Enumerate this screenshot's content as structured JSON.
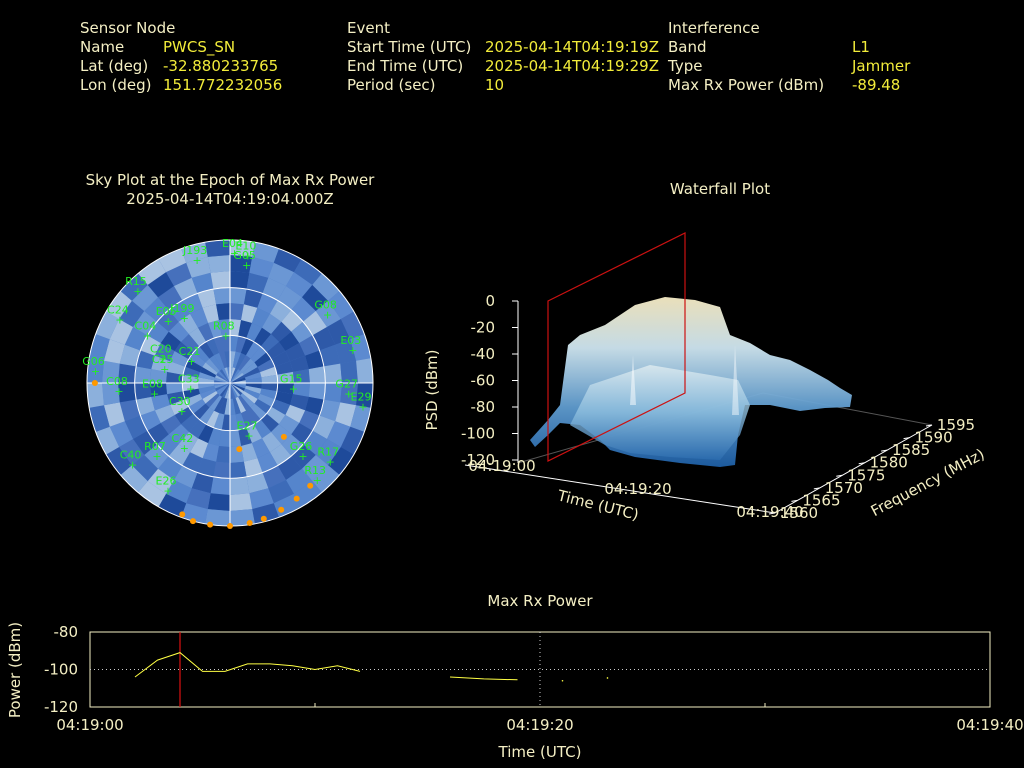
{
  "header": {
    "sensor": {
      "heading": "Sensor Node",
      "rows": [
        {
          "label": "Name",
          "value": "PWCS_SN"
        },
        {
          "label": "Lat (deg)",
          "value": "-32.880233765"
        },
        {
          "label": "Lon (deg)",
          "value": "151.772232056"
        }
      ]
    },
    "event": {
      "heading": "Event",
      "rows": [
        {
          "label": "Start Time (UTC)",
          "value": "2025-04-14T04:19:19Z"
        },
        {
          "label": "End Time (UTC)",
          "value": "2025-04-14T04:19:29Z"
        },
        {
          "label": "Period (sec)",
          "value": "10"
        }
      ]
    },
    "interference": {
      "heading": "Interference",
      "rows": [
        {
          "label": "Band",
          "value": "L1"
        },
        {
          "label": "Type",
          "value": "Jammer"
        },
        {
          "label": "Max Rx Power (dBm)",
          "value": "-89.48"
        }
      ]
    }
  },
  "skyplot": {
    "title_line1": "Sky Plot at the Epoch of Max Rx Power",
    "title_line2": "2025-04-14T04:19:04.000Z",
    "satellite_color": "#22ee22",
    "marker_color": "#ff9900",
    "satellites": [
      {
        "name": "J193",
        "az": 345,
        "el": 10
      },
      {
        "name": "E04",
        "az": 2,
        "el": 8
      },
      {
        "name": "E10",
        "az": 8,
        "el": 9
      },
      {
        "name": "G05",
        "az": 8,
        "el": 15
      },
      {
        "name": "R15",
        "az": 315,
        "el": 8
      },
      {
        "name": "C24",
        "az": 300,
        "el": 10
      },
      {
        "name": "E05",
        "az": 315,
        "el": 35
      },
      {
        "name": "G08",
        "az": 55,
        "el": 15
      },
      {
        "name": "E03",
        "az": 75,
        "el": 10
      },
      {
        "name": "C04",
        "az": 300,
        "el": 30
      },
      {
        "name": "J199",
        "az": 325,
        "el": 40
      },
      {
        "name": "C20",
        "az": 290,
        "el": 45
      },
      {
        "name": "C25",
        "az": 282,
        "el": 48
      },
      {
        "name": "R08",
        "az": 355,
        "el": 60
      },
      {
        "name": "G06",
        "az": 275,
        "el": 5
      },
      {
        "name": "C08",
        "az": 266,
        "el": 20
      },
      {
        "name": "E08",
        "az": 262,
        "el": 42
      },
      {
        "name": "C33",
        "az": 262,
        "el": 65
      },
      {
        "name": "C21",
        "az": 300,
        "el": 62
      },
      {
        "name": "G27",
        "az": 95,
        "el": 15
      },
      {
        "name": "E29",
        "az": 100,
        "el": 5
      },
      {
        "name": "G15",
        "az": 95,
        "el": 50
      },
      {
        "name": "E27",
        "az": 160,
        "el": 55
      },
      {
        "name": "G26",
        "az": 135,
        "el": 25
      },
      {
        "name": "R17",
        "az": 128,
        "el": 10
      },
      {
        "name": "R13",
        "az": 138,
        "el": 8
      },
      {
        "name": "C30",
        "az": 240,
        "el": 55
      },
      {
        "name": "C42",
        "az": 215,
        "el": 40
      },
      {
        "name": "R07",
        "az": 225,
        "el": 25
      },
      {
        "name": "C40",
        "az": 230,
        "el": 10
      },
      {
        "name": "E26",
        "az": 210,
        "el": 12
      }
    ],
    "orange_markers": [
      {
        "az": 200,
        "el": 2
      },
      {
        "az": 195,
        "el": 0
      },
      {
        "az": 188,
        "el": 0
      },
      {
        "az": 180,
        "el": 0
      },
      {
        "az": 172,
        "el": 1
      },
      {
        "az": 166,
        "el": 2
      },
      {
        "az": 158,
        "el": 4
      },
      {
        "az": 150,
        "el": 6
      },
      {
        "az": 142,
        "el": 8
      },
      {
        "az": 270,
        "el": 5
      },
      {
        "az": 172,
        "el": 48
      },
      {
        "az": 135,
        "el": 42
      }
    ]
  },
  "waterfall": {
    "title": "Waterfall Plot",
    "z_label": "PSD (dBm)",
    "z_ticks": [
      "0",
      "-20",
      "-40",
      "-60",
      "-80",
      "-100",
      "-120"
    ],
    "time_label": "Time (UTC)",
    "time_ticks": [
      "04:19:00",
      "04:19:20",
      "04:19:40"
    ],
    "freq_label": "Frequency (MHz)",
    "freq_ticks": [
      "1560",
      "1565",
      "1570",
      "1575",
      "1580",
      "1585",
      "1590",
      "1595"
    ],
    "frame_color": "#cc1111"
  },
  "chart_data": [
    {
      "type": "line",
      "title": "Max Rx Power",
      "xlabel": "Time (UTC)",
      "ylabel": "Power (dBm)",
      "ylim": [
        -120,
        -80
      ],
      "xticks": [
        "04:19:00",
        "04:19:20",
        "04:19:40"
      ],
      "yticks": [
        "-80",
        "-100",
        "-120"
      ],
      "grid": true,
      "line_color": "#ffff44",
      "marker_color": "#dd1111",
      "marker_x": 4,
      "series": [
        {
          "segments": [
            [
              [
                2,
                -104
              ],
              [
                3,
                -95
              ],
              [
                4,
                -91
              ],
              [
                5,
                -101
              ],
              [
                6,
                -101
              ],
              [
                7,
                -97
              ],
              [
                8,
                -97
              ],
              [
                9,
                -98
              ],
              [
                10,
                -100
              ],
              [
                11,
                -98
              ],
              [
                12,
                -101
              ]
            ],
            [
              [
                16,
                -104
              ],
              [
                17.5,
                -105
              ],
              [
                19,
                -105.5
              ]
            ],
            [
              [
                21,
                -106
              ]
            ],
            [
              [
                23,
                -104.5
              ]
            ]
          ]
        }
      ]
    }
  ]
}
